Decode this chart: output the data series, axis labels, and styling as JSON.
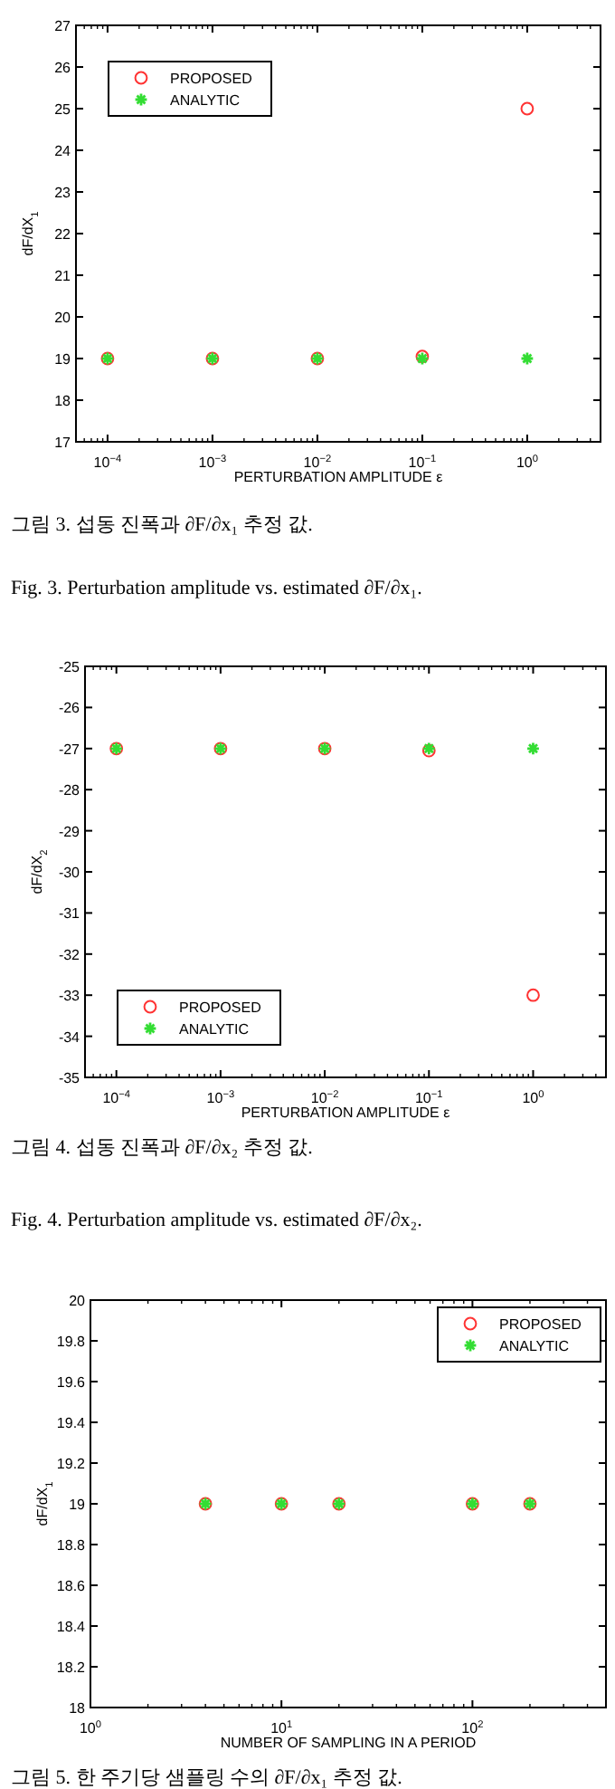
{
  "chart_data": [
    {
      "type": "scatter",
      "xlabel": "PERTURBATION AMPLITUDE ε",
      "ylabel": "dF/dX$_{1}$",
      "log": "x",
      "x": [
        0.0001,
        0.001,
        0.01,
        0.1,
        1
      ],
      "xlim": [
        5e-05,
        5
      ],
      "xticks": [
        {
          "value": 0.0001,
          "label": "10$^{−4}$"
        },
        {
          "value": 0.001,
          "label": "10$^{−3}$"
        },
        {
          "value": 0.01,
          "label": "10$^{−2}$"
        },
        {
          "value": 0.1,
          "label": "10$^{−1}$"
        },
        {
          "value": 1,
          "label": "10$^{0}$"
        }
      ],
      "ylim": [
        17,
        27
      ],
      "yticks": [
        17,
        18,
        19,
        20,
        21,
        22,
        23,
        24,
        25,
        26,
        27
      ],
      "grid": false,
      "legend": "top left",
      "series": [
        {
          "name": "PROPOSED",
          "color": "#ff3333",
          "marker": "circle",
          "values": [
            19,
            19,
            19,
            19.05,
            25
          ]
        },
        {
          "name": "ANALYTIC",
          "color": "#33dd33",
          "marker": "cross",
          "values": [
            19,
            19,
            19,
            19,
            19
          ]
        }
      ],
      "annotations": [
        "그림 3. 섭동 진폭과 ∂F/∂x₁ 추정 값.",
        "Fig.   3. Perturbation amplitude vs. estimated ∂F/∂x₁."
      ]
    },
    {
      "type": "scatter",
      "xlabel": "PERTURBATION AMPLITUDE ε",
      "ylabel": "dF/dX$_{2}$",
      "log": "x",
      "x": [
        0.0001,
        0.001,
        0.01,
        0.1,
        1
      ],
      "xlim": [
        5e-05,
        5
      ],
      "xticks": [
        {
          "value": 0.0001,
          "label": "10$^{−4}$"
        },
        {
          "value": 0.001,
          "label": "10$^{−3}$"
        },
        {
          "value": 0.01,
          "label": "10$^{−2}$"
        },
        {
          "value": 0.1,
          "label": "10$^{−1}$"
        },
        {
          "value": 1,
          "label": "10$^{0}$"
        }
      ],
      "ylim": [
        -35,
        -25
      ],
      "yticks": [
        -35,
        -34,
        -33,
        -32,
        -31,
        -30,
        -29,
        -28,
        -27,
        -26,
        -25
      ],
      "grid": false,
      "legend": "bottom left",
      "series": [
        {
          "name": "PROPOSED",
          "color": "#ff3333",
          "marker": "circle",
          "values": [
            -27,
            -27,
            -27,
            -27.05,
            -33
          ]
        },
        {
          "name": "ANALYTIC",
          "color": "#33dd33",
          "marker": "cross",
          "values": [
            -27,
            -27,
            -27,
            -27,
            -27
          ]
        }
      ],
      "annotations": [
        "그림 4. 섭동 진폭과 ∂F/∂x₂ 추정 값.",
        "Fig.   4. Perturbation amplitude vs. estimated ∂F/∂x₂."
      ]
    },
    {
      "type": "scatter",
      "xlabel": "NUMBER OF SAMPLING IN A PERIOD",
      "ylabel": "dF/dX$_{1}$",
      "log": "x",
      "x": [
        4,
        10,
        20,
        100,
        200
      ],
      "xlim": [
        1,
        500
      ],
      "xticks": [
        {
          "value": 1,
          "label": "10$^{0}$"
        },
        {
          "value": 10,
          "label": "10$^{1}$"
        },
        {
          "value": 100,
          "label": "10$^{2}$"
        }
      ],
      "ylim": [
        18,
        20
      ],
      "yticks": [
        18,
        18.2,
        18.4,
        18.6,
        18.8,
        19,
        19.2,
        19.4,
        19.6,
        19.8,
        20
      ],
      "grid": false,
      "legend": "top right",
      "series": [
        {
          "name": "PROPOSED",
          "color": "#ff3333",
          "marker": "circle",
          "values": [
            19,
            19,
            19,
            19,
            19
          ]
        },
        {
          "name": "ANALYTIC",
          "color": "#33dd33",
          "marker": "cross",
          "values": [
            19,
            19,
            19,
            19,
            19
          ]
        }
      ],
      "annotations": [
        "그림 5. 한 주기당 샘플링 수의 ∂F/∂x₁ 추정 값."
      ]
    }
  ]
}
